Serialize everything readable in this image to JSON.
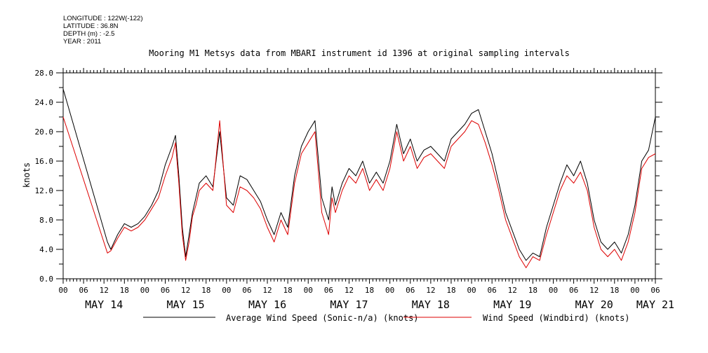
{
  "header": {
    "meta_lines": [
      "LONGITUDE : 122W(-122)",
      "LATITUDE : 36.8N",
      "DEPTH (m) : -2.5",
      "YEAR : 2011"
    ]
  },
  "chart_data": {
    "type": "line",
    "title": "Mooring M1 Metsys data from MBARI instrument id 1396 at original sampling intervals",
    "ylabel": "knots",
    "xlabel": "",
    "ylim": [
      0,
      28
    ],
    "y_ticks": [
      "0.0",
      "4.0",
      "8.0",
      "12.0",
      "16.0",
      "20.0",
      "24.0",
      "28.0"
    ],
    "x_range_hours": [
      0,
      174
    ],
    "hour_tick_labels": [
      "00",
      "06",
      "12",
      "18"
    ],
    "day_labels": [
      "MAY 14",
      "MAY 15",
      "MAY 16",
      "MAY 17",
      "MAY 18",
      "MAY 19",
      "MAY 20",
      "MAY 21"
    ],
    "grid": false,
    "legend": "bottom",
    "colors": {
      "avg": "#000000",
      "windbird": "#dd0000"
    },
    "series": [
      {
        "name": "Average Wind Speed (Sonic-n/a) (knots)",
        "x": [
          0,
          13,
          14,
          16,
          18,
          20,
          22,
          24,
          26,
          28,
          30,
          32,
          33,
          34,
          35,
          36,
          37,
          38,
          39,
          40,
          42,
          44,
          46,
          48,
          50,
          52,
          54,
          56,
          58,
          60,
          62,
          64,
          66,
          68,
          70,
          72,
          74,
          76,
          78,
          79,
          80,
          82,
          84,
          86,
          88,
          90,
          92,
          94,
          96,
          98,
          100,
          102,
          104,
          106,
          108,
          110,
          112,
          114,
          116,
          118,
          120,
          122,
          124,
          126,
          128,
          130,
          132,
          134,
          136,
          138,
          140,
          142,
          144,
          146,
          148,
          150,
          152,
          154,
          156,
          158,
          160,
          162,
          164,
          166,
          168,
          170,
          172,
          174
        ],
        "values": [
          25.8,
          5.0,
          4.0,
          6.0,
          7.5,
          7.0,
          7.5,
          8.5,
          10.0,
          12.0,
          15.5,
          18.0,
          19.5,
          14.0,
          7.0,
          3.0,
          6.0,
          9.0,
          11.0,
          13.0,
          14.0,
          12.5,
          20.0,
          11.0,
          10.0,
          14.0,
          13.5,
          12.0,
          10.5,
          8.0,
          6.0,
          9.0,
          7.0,
          14.0,
          18.0,
          20.0,
          21.5,
          11.0,
          8.0,
          12.5,
          10.0,
          13.0,
          15.0,
          14.0,
          16.0,
          13.0,
          14.5,
          13.0,
          16.0,
          21.0,
          17.0,
          19.0,
          16.0,
          17.5,
          18.0,
          17.0,
          16.0,
          19.0,
          20.0,
          21.0,
          22.5,
          23.0,
          20.0,
          17.0,
          13.0,
          9.0,
          6.5,
          4.0,
          2.5,
          3.5,
          3.0,
          7.0,
          10.0,
          13.0,
          15.5,
          14.0,
          16.0,
          13.0,
          8.0,
          5.0,
          4.0,
          5.0,
          3.5,
          6.0,
          10.0,
          16.0,
          17.5,
          22.0
        ]
      },
      {
        "name": "Wind Speed (Windbird) (knots)",
        "x": [
          0,
          13,
          14,
          16,
          18,
          20,
          22,
          24,
          26,
          28,
          30,
          32,
          33,
          34,
          35,
          36,
          37,
          38,
          39,
          40,
          42,
          44,
          46,
          48,
          50,
          52,
          54,
          56,
          58,
          60,
          62,
          64,
          66,
          68,
          70,
          72,
          74,
          76,
          78,
          79,
          80,
          82,
          84,
          86,
          88,
          90,
          92,
          94,
          96,
          98,
          100,
          102,
          104,
          106,
          108,
          110,
          112,
          114,
          116,
          118,
          120,
          122,
          124,
          126,
          128,
          130,
          132,
          134,
          136,
          138,
          140,
          142,
          144,
          146,
          148,
          150,
          152,
          154,
          156,
          158,
          160,
          162,
          164,
          166,
          168,
          170,
          172,
          174
        ],
        "values": [
          22.0,
          3.5,
          3.8,
          5.5,
          7.0,
          6.5,
          7.0,
          8.0,
          9.5,
          11.0,
          14.0,
          16.5,
          18.5,
          13.0,
          6.0,
          2.5,
          5.0,
          8.5,
          10.0,
          12.0,
          13.0,
          12.0,
          21.5,
          10.0,
          9.0,
          12.5,
          12.0,
          11.0,
          9.5,
          7.0,
          5.0,
          8.0,
          6.0,
          13.0,
          17.0,
          18.5,
          20.0,
          9.0,
          6.0,
          11.0,
          9.0,
          12.0,
          14.0,
          13.0,
          15.0,
          12.0,
          13.5,
          12.0,
          15.0,
          20.0,
          16.0,
          18.0,
          15.0,
          16.5,
          17.0,
          16.0,
          15.0,
          18.0,
          19.0,
          20.0,
          21.5,
          21.0,
          18.5,
          15.5,
          12.0,
          8.0,
          5.5,
          3.0,
          1.5,
          3.0,
          2.5,
          6.0,
          9.0,
          12.0,
          14.0,
          13.0,
          14.5,
          12.0,
          7.0,
          4.0,
          3.0,
          4.0,
          2.5,
          5.0,
          9.0,
          15.0,
          16.5,
          17.0
        ]
      }
    ]
  }
}
